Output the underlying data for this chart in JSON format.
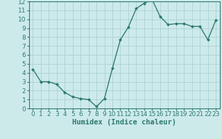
{
  "x": [
    0,
    1,
    2,
    3,
    4,
    5,
    6,
    7,
    8,
    9,
    10,
    11,
    12,
    13,
    14,
    15,
    16,
    17,
    18,
    19,
    20,
    21,
    22,
    23
  ],
  "y": [
    4.4,
    3.0,
    3.0,
    2.7,
    1.8,
    1.3,
    1.1,
    1.0,
    0.2,
    1.1,
    4.5,
    7.7,
    9.1,
    11.2,
    11.8,
    12.2,
    10.3,
    9.4,
    9.5,
    9.5,
    9.2,
    9.2,
    7.7,
    9.9
  ],
  "line_color": "#2d7a6e",
  "marker": "D",
  "marker_size": 2.5,
  "bg_color": "#cdeaea",
  "grid_color": "#b0d4d4",
  "xlabel": "Humidex (Indice chaleur)",
  "xlabel_fontsize": 7.5,
  "tick_fontsize": 6.5,
  "xlim": [
    -0.5,
    23.5
  ],
  "ylim": [
    0,
    12
  ],
  "yticks": [
    0,
    1,
    2,
    3,
    4,
    5,
    6,
    7,
    8,
    9,
    10,
    11,
    12
  ],
  "xticks": [
    0,
    1,
    2,
    3,
    4,
    5,
    6,
    7,
    8,
    9,
    10,
    11,
    12,
    13,
    14,
    15,
    16,
    17,
    18,
    19,
    20,
    21,
    22,
    23
  ]
}
